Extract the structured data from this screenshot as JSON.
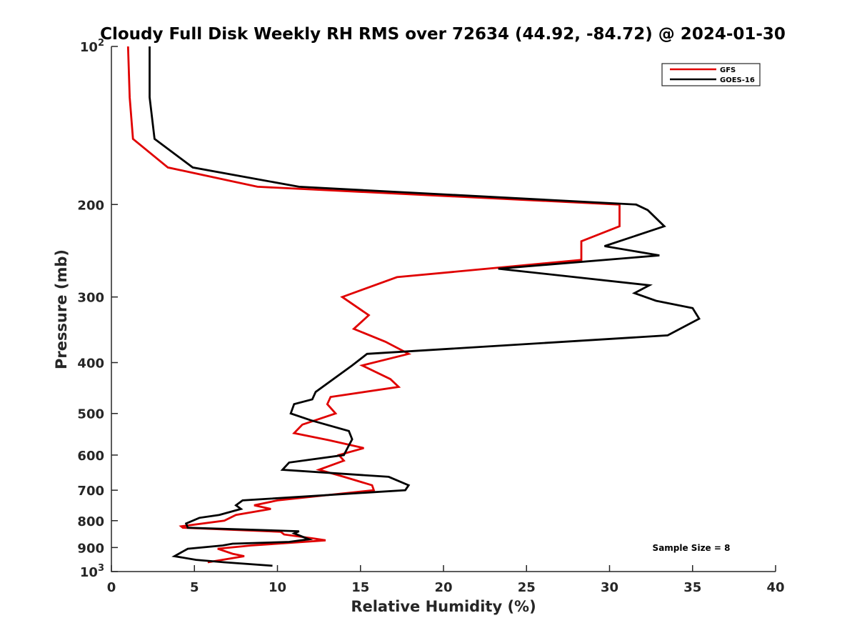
{
  "chart_data": {
    "type": "line",
    "title": "Cloudy Full Disk Weekly RH RMS over 72634 (44.92, -84.72) @ 2024-01-30",
    "xlabel": "Relative Humidity (%)",
    "ylabel": "Pressure (mb)",
    "xlim": [
      0,
      40
    ],
    "ylim": [
      100,
      1000
    ],
    "y_scale": "log",
    "y_reversed": true,
    "grid": false,
    "x_ticks": [
      "0",
      "5",
      "10",
      "15",
      "20",
      "25",
      "30",
      "35",
      "40"
    ],
    "y_ticks": [
      {
        "value": 100,
        "base": "10",
        "exp": "2"
      },
      {
        "value": 200,
        "label": "200"
      },
      {
        "value": 300,
        "label": "300"
      },
      {
        "value": 400,
        "label": "400"
      },
      {
        "value": 500,
        "label": "500"
      },
      {
        "value": 600,
        "label": "600"
      },
      {
        "value": 700,
        "label": "700"
      },
      {
        "value": 800,
        "label": "800"
      },
      {
        "value": 900,
        "label": "900"
      },
      {
        "value": 1000,
        "base": "10",
        "exp": "3"
      }
    ],
    "legend": {
      "position": "top-right"
    },
    "annotation": "Sample Size = 8",
    "series": [
      {
        "name": "GFS",
        "color": "#e00000",
        "points": [
          [
            1.0,
            100
          ],
          [
            1.1,
            125
          ],
          [
            1.3,
            150
          ],
          [
            3.4,
            170
          ],
          [
            8.8,
            185
          ],
          [
            30.6,
            200
          ],
          [
            30.6,
            220
          ],
          [
            28.3,
            235
          ],
          [
            28.3,
            255
          ],
          [
            17.2,
            275
          ],
          [
            13.9,
            300
          ],
          [
            15.5,
            325
          ],
          [
            14.6,
            345
          ],
          [
            16.5,
            365
          ],
          [
            17.9,
            385
          ],
          [
            15.1,
            405
          ],
          [
            16.8,
            430
          ],
          [
            17.3,
            445
          ],
          [
            13.2,
            465
          ],
          [
            13.0,
            480
          ],
          [
            13.5,
            500
          ],
          [
            11.5,
            525
          ],
          [
            11.0,
            545
          ],
          [
            13.1,
            562
          ],
          [
            15.2,
            582
          ],
          [
            13.7,
            600
          ],
          [
            14.0,
            615
          ],
          [
            12.5,
            640
          ],
          [
            14.0,
            660
          ],
          [
            15.7,
            685
          ],
          [
            15.8,
            700
          ],
          [
            10.0,
            732
          ],
          [
            8.6,
            748
          ],
          [
            9.6,
            760
          ],
          [
            7.5,
            780
          ],
          [
            6.8,
            800
          ],
          [
            4.2,
            820
          ],
          [
            4.3,
            825
          ],
          [
            10.2,
            840
          ],
          [
            10.4,
            850
          ],
          [
            12.2,
            865
          ],
          [
            12.9,
            872
          ],
          [
            10.0,
            885
          ],
          [
            8.4,
            892
          ],
          [
            6.4,
            905
          ],
          [
            7.3,
            925
          ],
          [
            8.0,
            935
          ],
          [
            5.8,
            960
          ]
        ]
      },
      {
        "name": "GOES-16",
        "color": "#000000",
        "points": [
          [
            2.3,
            100
          ],
          [
            2.3,
            125
          ],
          [
            2.6,
            150
          ],
          [
            4.9,
            170
          ],
          [
            11.3,
            185
          ],
          [
            31.6,
            200
          ],
          [
            32.3,
            205
          ],
          [
            33.3,
            220
          ],
          [
            29.7,
            240
          ],
          [
            33.0,
            250
          ],
          [
            23.3,
            265
          ],
          [
            32.4,
            285
          ],
          [
            31.5,
            295
          ],
          [
            32.8,
            305
          ],
          [
            35.0,
            315
          ],
          [
            35.4,
            330
          ],
          [
            33.5,
            355
          ],
          [
            15.4,
            385
          ],
          [
            14.5,
            405
          ],
          [
            12.3,
            455
          ],
          [
            12.1,
            470
          ],
          [
            11.0,
            480
          ],
          [
            10.8,
            500
          ],
          [
            12.0,
            515
          ],
          [
            14.3,
            540
          ],
          [
            14.5,
            560
          ],
          [
            14.3,
            575
          ],
          [
            14.0,
            600
          ],
          [
            10.7,
            620
          ],
          [
            10.3,
            640
          ],
          [
            16.7,
            660
          ],
          [
            17.9,
            685
          ],
          [
            17.7,
            700
          ],
          [
            7.9,
            732
          ],
          [
            7.5,
            748
          ],
          [
            7.8,
            760
          ],
          [
            6.5,
            780
          ],
          [
            5.3,
            790
          ],
          [
            4.5,
            810
          ],
          [
            4.6,
            825
          ],
          [
            11.3,
            838
          ],
          [
            11.0,
            846
          ],
          [
            11.9,
            868
          ],
          [
            10.7,
            878
          ],
          [
            7.3,
            885
          ],
          [
            6.7,
            892
          ],
          [
            4.6,
            905
          ],
          [
            3.8,
            935
          ],
          [
            5.1,
            950
          ],
          [
            6.8,
            960
          ],
          [
            9.7,
            975
          ]
        ]
      }
    ]
  }
}
